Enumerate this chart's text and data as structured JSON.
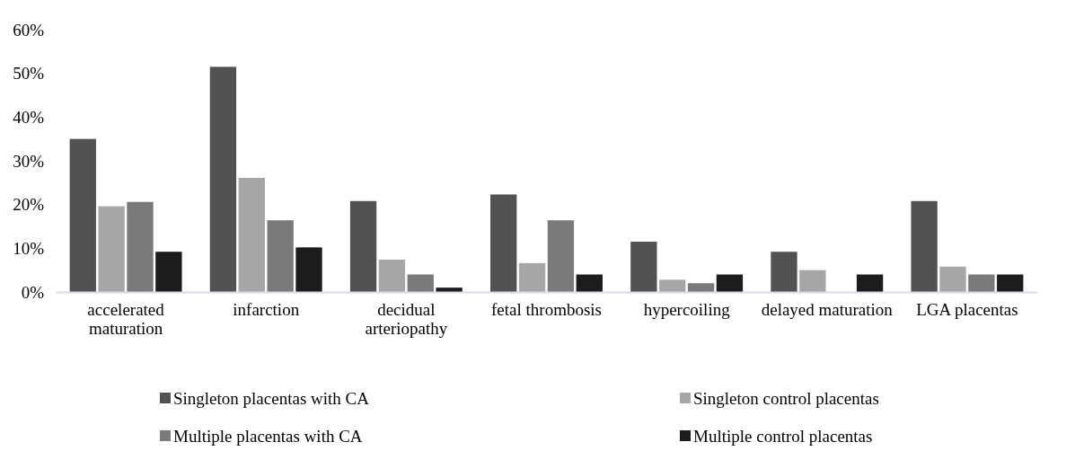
{
  "chart_data": {
    "type": "bar",
    "categories": [
      "accelerated maturation",
      "infarction",
      "decidual arteriopathy",
      "fetal thrombosis",
      "hypercoiling",
      "delayed maturation",
      "LGA placentas"
    ],
    "series": [
      {
        "name": "Singleton placentas with CA",
        "color": "#525252",
        "values": [
          35,
          51.5,
          20.8,
          22.3,
          11.5,
          9.2,
          20.8
        ]
      },
      {
        "name": "Singleton control placentas",
        "color": "#a6a6a6",
        "values": [
          19.6,
          26.1,
          7.4,
          6.6,
          2.8,
          5,
          5.8
        ]
      },
      {
        "name": "Multiple placentas with CA",
        "color": "#7a7a7a",
        "values": [
          20.6,
          16.4,
          4,
          16.4,
          2,
          0,
          4
        ]
      },
      {
        "name": "Multiple control placentas",
        "color": "#1c1c1c",
        "values": [
          9.2,
          10.2,
          1,
          4,
          4,
          4,
          4
        ]
      }
    ],
    "ylim": [
      0,
      60
    ],
    "yticks": [
      {
        "value": 0,
        "label": "0%"
      },
      {
        "value": 10,
        "label": "10%"
      },
      {
        "value": 20,
        "label": "20%"
      },
      {
        "value": 30,
        "label": "30%"
      },
      {
        "value": 40,
        "label": "40%"
      },
      {
        "value": 50,
        "label": "50%"
      },
      {
        "value": 60,
        "label": "60%"
      }
    ],
    "grid": false,
    "legend": "bottom"
  }
}
